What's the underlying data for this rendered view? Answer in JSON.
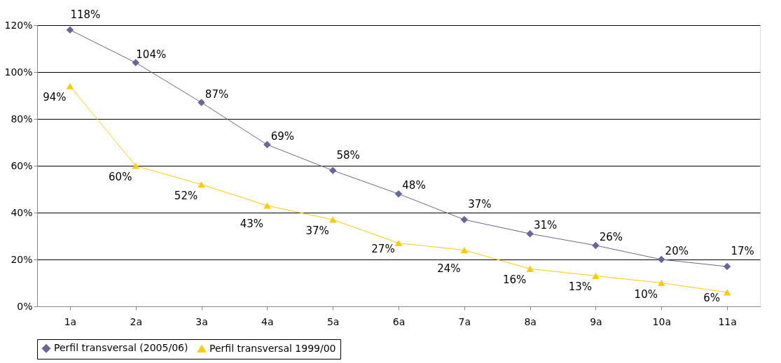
{
  "chart_data": {
    "type": "line",
    "categories": [
      "1a",
      "2a",
      "3a",
      "4a",
      "5a",
      "6a",
      "7a",
      "8a",
      "9a",
      "10a",
      "11a"
    ],
    "series": [
      {
        "name": "Perfil transversal (2005/06)",
        "color": "#666699",
        "marker": "diamond",
        "values": [
          118,
          104,
          87,
          69,
          58,
          48,
          37,
          31,
          26,
          20,
          17
        ],
        "value_labels": [
          "118%",
          "104%",
          "87%",
          "69%",
          "58%",
          "48%",
          "37%",
          "31%",
          "26%",
          "20%",
          "17%"
        ]
      },
      {
        "name": "Perfil transversal 1999/00",
        "color": "#ffcc00",
        "marker": "triangle",
        "values": [
          94,
          60,
          52,
          43,
          37,
          27,
          24,
          16,
          13,
          10,
          6
        ],
        "value_labels": [
          "94%",
          "60%",
          "52%",
          "43%",
          "37%",
          "27%",
          "24%",
          "16%",
          "13%",
          "10%",
          "6%"
        ]
      }
    ],
    "ylim": [
      0,
      120
    ],
    "yticks": [
      {
        "value": 0,
        "label": "0%"
      },
      {
        "value": 20,
        "label": "20%"
      },
      {
        "value": 40,
        "label": "40%"
      },
      {
        "value": 60,
        "label": "60%"
      },
      {
        "value": 80,
        "label": "80%"
      },
      {
        "value": 100,
        "label": "100%"
      },
      {
        "value": 120,
        "label": "120%"
      }
    ],
    "grid": "y",
    "legend": "bottom"
  }
}
